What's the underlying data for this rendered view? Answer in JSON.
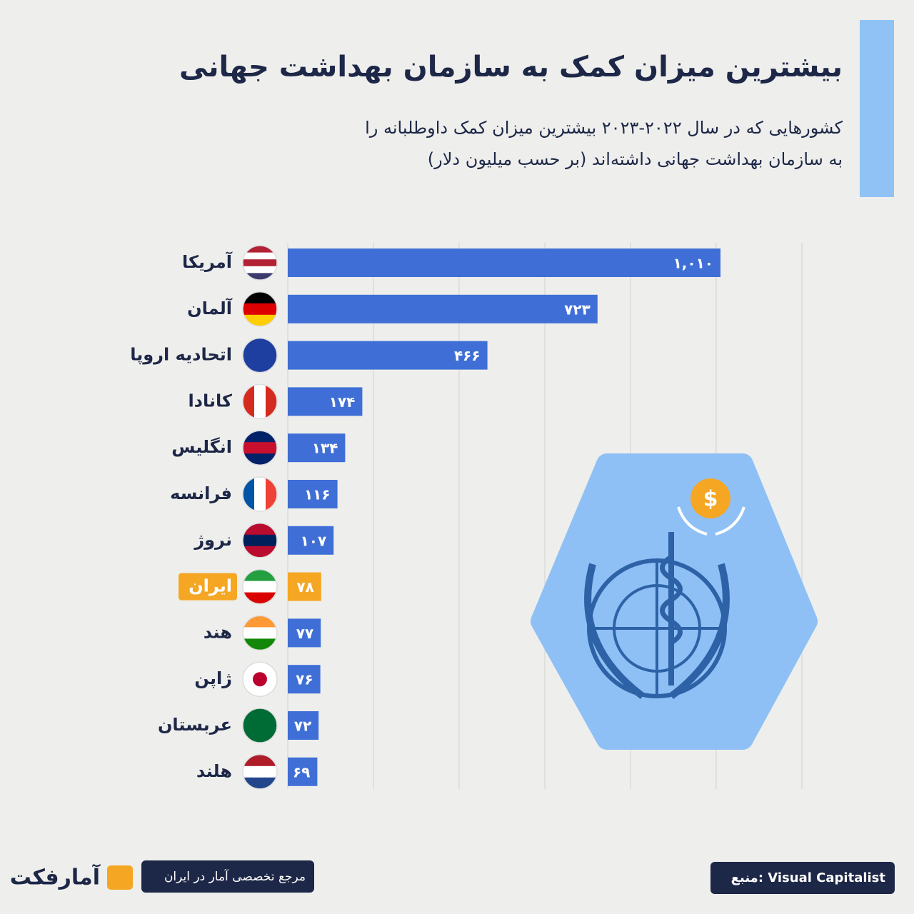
{
  "chart_data": {
    "type": "bar",
    "orientation": "horizontal",
    "title": "بیشترین میزان کمک به سازمان بهداشت جهانی",
    "subtitle": [
      "کشورهایی که در سال ۲۰۲۲-۲۰۲۳ بیشترین میزان کمک داوطلبانه را",
      "به سازمان بهداشت جهانی داشته‌اند (بر حسب میلیون دلار)"
    ],
    "categories": [
      "آمریکا",
      "آلمان",
      "اتحادیه اروپا",
      "کانادا",
      "انگلیس",
      "فرانسه",
      "نروژ",
      "ایران",
      "هند",
      "ژاپن",
      "عربستان",
      "هلند"
    ],
    "values": [
      1010,
      723,
      466,
      174,
      134,
      116,
      107,
      78,
      77,
      76,
      72,
      69
    ],
    "value_labels": [
      "۱,۰۱۰",
      "۷۲۳",
      "۴۶۶",
      "۱۷۴",
      "۱۳۴",
      "۱۱۶",
      "۱۰۷",
      "۷۸",
      "۷۷",
      "۷۶",
      "۷۲",
      "۶۹"
    ],
    "bar_colors": [
      "#3f6fd6",
      "#3f6fd6",
      "#3f6fd6",
      "#3f6fd6",
      "#3f6fd6",
      "#3f6fd6",
      "#3f6fd6",
      "#f5a623",
      "#3f6fd6",
      "#3f6fd6",
      "#3f6fd6",
      "#3f6fd6"
    ],
    "xlim": [
      0,
      1200
    ],
    "xticks": [
      0,
      200,
      400,
      600,
      800,
      1000,
      1200
    ],
    "grid": true,
    "source": "منبع: Visual Capitalist",
    "brand": "آمارفکت",
    "brand_tagline": "مرجع تخصصی آمار در ایران"
  }
}
